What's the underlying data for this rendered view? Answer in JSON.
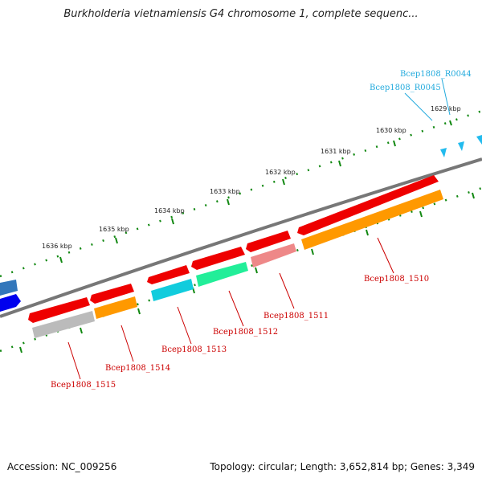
{
  "title": "Burkholderia vietnamiensis G4 chromosome 1, complete sequenc...",
  "footer": {
    "accession": "Accession: NC_009256",
    "info": "Topology: circular; Length: 3,652,814 bp; Genes: 3,349"
  },
  "scale": {
    "labels": [
      "1629 kbp",
      "1630 kbp",
      "1631 kbp",
      "1632 kbp",
      "1633 kbp",
      "1634 kbp",
      "1635 kbp",
      "1636 kbp"
    ]
  },
  "genes": [
    {
      "id": "Bcep1808_1510",
      "forward_color": "#ee0000",
      "reverse_color": "#ff9900"
    },
    {
      "id": "Bcep1808_1511",
      "forward_color": "#ee0000",
      "reverse_color": "#ee8888"
    },
    {
      "id": "Bcep1808_1512",
      "forward_color": "#ee0000",
      "reverse_color": "#22ee99"
    },
    {
      "id": "Bcep1808_1513",
      "forward_color": "#ee0000",
      "reverse_color": "#11ccdd"
    },
    {
      "id": "Bcep1808_1514",
      "forward_color": "#ee0000",
      "reverse_color": "#ff9900"
    },
    {
      "id": "Bcep1808_1515",
      "forward_color": "#ee0000",
      "reverse_color": "#bbbbbb"
    }
  ],
  "rna_features": [
    {
      "id": "Bcep1808_R0044",
      "color": "#22bbee"
    },
    {
      "id": "Bcep1808_R0045",
      "color": "#22bbee"
    }
  ],
  "colors": {
    "backbone": "#777777",
    "tick": "#118811",
    "gene_label": "#cc0000",
    "rna_label": "#22aadd"
  }
}
